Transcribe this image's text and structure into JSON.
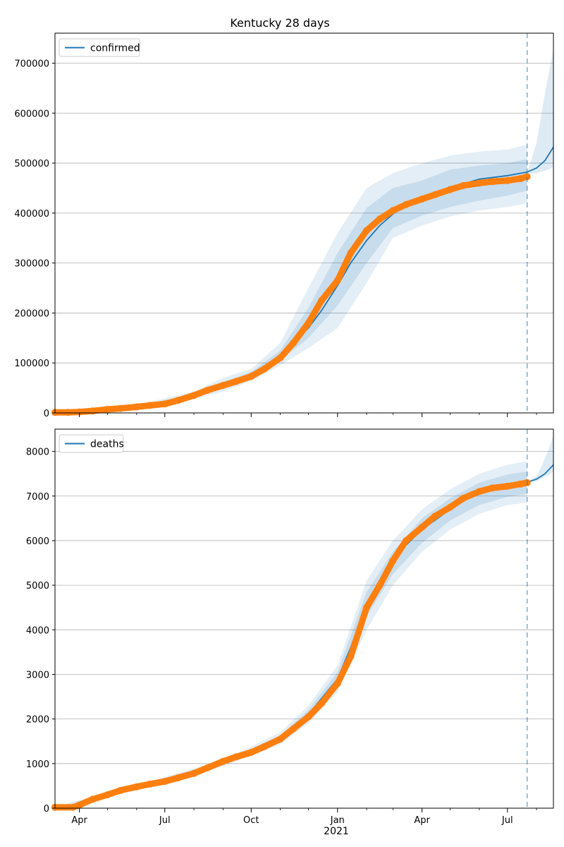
{
  "figure": {
    "title": "Kentucky 28 days",
    "year_label": "2021",
    "x_tick_labels": [
      "Apr",
      "Jul",
      "Oct",
      "Jan",
      "Apr",
      "Jul"
    ]
  },
  "colors": {
    "model_line": "#1f77b4",
    "band": "#1f77b4",
    "observed": "#ff7f0e",
    "forecast_marker": "#1f77b4",
    "grid": "#b0b0b0"
  },
  "chart_data": [
    {
      "type": "line",
      "panel": "confirmed",
      "title": "Kentucky 28 days",
      "legend": [
        "confirmed"
      ],
      "legend_position": "upper-left",
      "grid": "horizontal",
      "xlim": [
        "2020-03-06",
        "2021-08-19"
      ],
      "ylim": [
        0,
        760000
      ],
      "yticks": [
        0,
        100000,
        200000,
        300000,
        400000,
        500000,
        600000,
        700000
      ],
      "forecast_start": "2021-07-22",
      "model": {
        "name": "confirmed",
        "x": [
          "2020-03-06",
          "2020-04-01",
          "2020-05-01",
          "2020-06-01",
          "2020-07-01",
          "2020-08-01",
          "2020-09-01",
          "2020-10-01",
          "2020-10-20",
          "2020-11-01",
          "2020-11-15",
          "2020-12-01",
          "2020-12-15",
          "2021-01-01",
          "2021-01-15",
          "2021-02-01",
          "2021-02-15",
          "2021-03-01",
          "2021-03-15",
          "2021-04-01",
          "2021-05-01",
          "2021-06-01",
          "2021-07-01",
          "2021-07-22",
          "2021-08-01",
          "2021-08-10",
          "2021-08-19"
        ],
        "y": [
          1000,
          3000,
          8000,
          12000,
          18000,
          35000,
          55000,
          75000,
          95000,
          115000,
          140000,
          170000,
          205000,
          255000,
          300000,
          345000,
          375000,
          398000,
          415000,
          432000,
          450000,
          468000,
          475000,
          482000,
          490000,
          505000,
          532000
        ]
      },
      "bands": {
        "x": [
          "2020-03-06",
          "2020-06-01",
          "2020-08-01",
          "2020-09-01",
          "2020-10-01",
          "2020-11-01",
          "2020-12-01",
          "2021-01-01",
          "2021-02-01",
          "2021-03-01",
          "2021-04-01",
          "2021-05-01",
          "2021-06-01",
          "2021-07-01",
          "2021-07-22"
        ],
        "outer_upper": [
          1500,
          16000,
          43000,
          70000,
          88000,
          140000,
          250000,
          360000,
          450000,
          480000,
          500000,
          515000,
          523000,
          527000,
          537000
        ],
        "outer_lower": [
          500,
          8000,
          28000,
          43000,
          64000,
          95000,
          130000,
          170000,
          260000,
          350000,
          375000,
          393000,
          405000,
          412000,
          420000
        ],
        "inner_upper": [
          1200,
          14000,
          38000,
          62000,
          82000,
          125000,
          210000,
          320000,
          410000,
          450000,
          465000,
          487000,
          495000,
          500000,
          508000
        ],
        "inner_lower": [
          800,
          10000,
          32000,
          50000,
          70000,
          105000,
          150000,
          215000,
          300000,
          370000,
          395000,
          412000,
          425000,
          435000,
          445000
        ],
        "forecast_upper": [
          480000,
          540000,
          595000,
          640000,
          690000,
          730000
        ],
        "forecast_lower": [
          478000,
          480000,
          483000,
          485000,
          488000,
          493000
        ],
        "forecast_x": [
          "2021-07-22",
          "2021-08-01",
          "2021-08-06",
          "2021-08-10",
          "2021-08-15",
          "2021-08-19"
        ]
      },
      "observed": {
        "name": "observed",
        "x": [
          "2020-03-06",
          "2020-03-20",
          "2020-04-01",
          "2020-04-15",
          "2020-05-01",
          "2020-05-15",
          "2020-06-01",
          "2020-06-15",
          "2020-07-01",
          "2020-07-15",
          "2020-08-01",
          "2020-08-15",
          "2020-09-01",
          "2020-09-15",
          "2020-10-01",
          "2020-10-15",
          "2020-11-01",
          "2020-11-15",
          "2020-12-01",
          "2020-12-15",
          "2021-01-01",
          "2021-01-15",
          "2021-02-01",
          "2021-02-15",
          "2021-03-01",
          "2021-03-15",
          "2021-04-01",
          "2021-04-15",
          "2021-05-01",
          "2021-05-15",
          "2021-06-01",
          "2021-06-15",
          "2021-07-01",
          "2021-07-15",
          "2021-07-22"
        ],
        "y": [
          1000,
          1000,
          2000,
          4000,
          7000,
          9000,
          12000,
          15000,
          18000,
          25000,
          35000,
          45000,
          55000,
          63000,
          73000,
          88000,
          110000,
          140000,
          180000,
          225000,
          265000,
          320000,
          365000,
          388000,
          405000,
          417000,
          428000,
          437000,
          447000,
          455000,
          460000,
          463000,
          465000,
          469000,
          473000
        ]
      }
    },
    {
      "type": "line",
      "panel": "deaths",
      "legend": [
        "deaths"
      ],
      "legend_position": "upper-left",
      "grid": "horizontal",
      "xlim": [
        "2020-03-06",
        "2021-08-19"
      ],
      "ylim": [
        0,
        8500
      ],
      "yticks": [
        0,
        1000,
        2000,
        3000,
        4000,
        5000,
        6000,
        7000,
        8000
      ],
      "forecast_start": "2021-07-22",
      "model": {
        "name": "deaths",
        "x": [
          "2020-03-06",
          "2020-04-01",
          "2020-04-15",
          "2020-05-01",
          "2020-06-01",
          "2020-07-01",
          "2020-08-01",
          "2020-09-01",
          "2020-10-01",
          "2020-11-01",
          "2020-12-01",
          "2021-01-01",
          "2021-01-15",
          "2021-02-01",
          "2021-02-15",
          "2021-03-01",
          "2021-03-15",
          "2021-04-01",
          "2021-05-01",
          "2021-06-01",
          "2021-07-01",
          "2021-07-22",
          "2021-08-01",
          "2021-08-10",
          "2021-08-19"
        ],
        "y": [
          20,
          50,
          200,
          320,
          490,
          590,
          760,
          1000,
          1200,
          1550,
          2100,
          2900,
          3600,
          4600,
          5050,
          5500,
          5900,
          6250,
          6700,
          7100,
          7250,
          7310,
          7380,
          7500,
          7700
        ]
      },
      "bands": {
        "x": [
          "2020-03-06",
          "2020-06-01",
          "2020-09-01",
          "2020-11-01",
          "2020-12-01",
          "2021-01-01",
          "2021-02-01",
          "2021-03-01",
          "2021-04-01",
          "2021-05-01",
          "2021-06-01",
          "2021-07-01",
          "2021-07-22"
        ],
        "outer_upper": [
          30,
          520,
          1080,
          1700,
          2300,
          3200,
          5100,
          6000,
          6700,
          7150,
          7500,
          7700,
          7780
        ],
        "outer_lower": [
          10,
          460,
          930,
          1430,
          1900,
          2600,
          4000,
          5000,
          5750,
          6250,
          6600,
          6800,
          6850
        ],
        "inner_upper": [
          25,
          505,
          1040,
          1630,
          2200,
          3050,
          4850,
          5750,
          6500,
          6950,
          7300,
          7480,
          7550
        ],
        "inner_lower": [
          15,
          475,
          960,
          1480,
          2000,
          2750,
          4300,
          5250,
          5950,
          6450,
          6800,
          6980,
          7050
        ],
        "forecast_upper": [
          7320,
          7450,
          7650,
          7850,
          8100,
          8380
        ],
        "forecast_lower": [
          7300,
          7330,
          7380,
          7430,
          7480,
          7550
        ],
        "forecast_x": [
          "2021-07-22",
          "2021-08-01",
          "2021-08-06",
          "2021-08-10",
          "2021-08-15",
          "2021-08-19"
        ]
      },
      "observed": {
        "name": "observed",
        "x": [
          "2020-03-06",
          "2020-03-25",
          "2020-04-01",
          "2020-04-15",
          "2020-05-01",
          "2020-05-15",
          "2020-06-01",
          "2020-06-15",
          "2020-07-01",
          "2020-07-15",
          "2020-08-01",
          "2020-08-15",
          "2020-09-01",
          "2020-09-15",
          "2020-10-01",
          "2020-10-15",
          "2020-11-01",
          "2020-11-15",
          "2020-12-01",
          "2020-12-15",
          "2021-01-01",
          "2021-01-15",
          "2021-02-01",
          "2021-02-15",
          "2021-03-01",
          "2021-03-15",
          "2021-04-01",
          "2021-04-15",
          "2021-05-01",
          "2021-05-15",
          "2021-06-01",
          "2021-06-15",
          "2021-07-01",
          "2021-07-15",
          "2021-07-22"
        ],
        "y": [
          20,
          20,
          70,
          200,
          300,
          400,
          480,
          540,
          600,
          680,
          780,
          900,
          1050,
          1150,
          1250,
          1380,
          1550,
          1780,
          2050,
          2350,
          2800,
          3400,
          4500,
          5000,
          5550,
          6000,
          6300,
          6550,
          6750,
          6950,
          7100,
          7180,
          7220,
          7270,
          7300
        ]
      }
    }
  ]
}
